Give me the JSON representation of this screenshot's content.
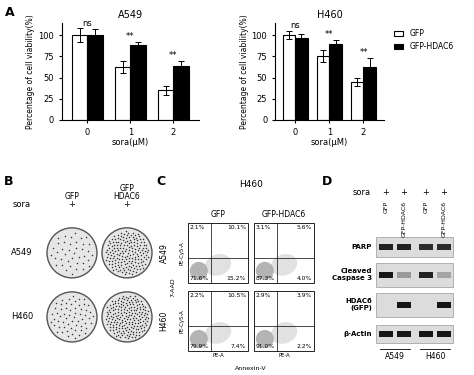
{
  "chart_data": [
    {
      "type": "bar",
      "title": "A549",
      "x_label": "sora(μM)",
      "y_label": "Percentage of cell viability(%)",
      "categories": [
        "0",
        "1",
        "2"
      ],
      "series": [
        {
          "name": "GFP",
          "color": "#ffffff",
          "values": [
            100,
            63,
            35
          ],
          "errors": [
            8,
            7,
            5
          ]
        },
        {
          "name": "GFP-HDAC6",
          "color": "#000000",
          "values": [
            100,
            88,
            64
          ],
          "errors": [
            7,
            4,
            6
          ]
        }
      ],
      "annotations": [
        "ns",
        "**",
        "**"
      ],
      "ylim": [
        0,
        115
      ],
      "yticks": [
        0,
        25,
        50,
        75,
        100
      ]
    },
    {
      "type": "bar",
      "title": "H460",
      "x_label": "sora(μM)",
      "y_label": "Percentage of cell viability(%)",
      "categories": [
        "0",
        "1",
        "2"
      ],
      "series": [
        {
          "name": "GFP",
          "color": "#ffffff",
          "values": [
            100,
            75,
            45
          ],
          "errors": [
            5,
            7,
            5
          ]
        },
        {
          "name": "GFP-HDAC6",
          "color": "#000000",
          "values": [
            97,
            90,
            63
          ],
          "errors": [
            5,
            4,
            10
          ]
        }
      ],
      "annotations": [
        "ns",
        "**",
        "**"
      ],
      "ylim": [
        0,
        115
      ],
      "yticks": [
        0,
        25,
        50,
        75,
        100
      ],
      "legend": "upper left"
    }
  ],
  "figure": {
    "panel_labels": [
      "A",
      "B",
      "C",
      "D"
    ],
    "B": {
      "treatment_label": "sora",
      "columns": [
        {
          "label_lines": [
            "GFP"
          ],
          "treatment": "+"
        },
        {
          "label_lines": [
            "GFP",
            "HDAC6"
          ],
          "treatment": "+"
        }
      ],
      "rows": [
        "A549",
        "H460"
      ]
    },
    "C": {
      "title": "H460",
      "columns": [
        "GFP",
        "GFP-HDAC6"
      ],
      "rows": [
        {
          "label": "A549",
          "quadrants": [
            [
              "2.1%",
              "10.1%",
              "71.6%",
              "15.2%"
            ],
            [
              "3.1%",
              "5.6%",
              "87.3%",
              "4.0%"
            ]
          ]
        },
        {
          "label": "H460",
          "quadrants": [
            [
              "2.2%",
              "10.5%",
              "79.9%",
              "7.4%"
            ],
            [
              "2.9%",
              "3.9%",
              "91.0%",
              "2.2%"
            ]
          ]
        }
      ],
      "y_label": "PE-Cy5-A",
      "y_stain": "7-AAD",
      "x_label": "PE-A",
      "x_stain": "Annexin-V"
    },
    "D": {
      "treatment_label": "sora",
      "treatment": [
        "+",
        "+",
        "+",
        "+"
      ],
      "lanes": [
        "GFP",
        "GFP-HDAC6",
        "GFP",
        "GFP-HDAC6"
      ],
      "cell_lines": [
        "A549",
        "H460"
      ],
      "rows": [
        {
          "label_lines": [
            "PARP"
          ]
        },
        {
          "label_lines": [
            "Cleaved",
            "Caspase 3"
          ]
        },
        {
          "label_lines": [
            "HDAC6",
            "(GFP)"
          ]
        },
        {
          "label_lines": [
            "β-Actin"
          ]
        }
      ]
    }
  }
}
